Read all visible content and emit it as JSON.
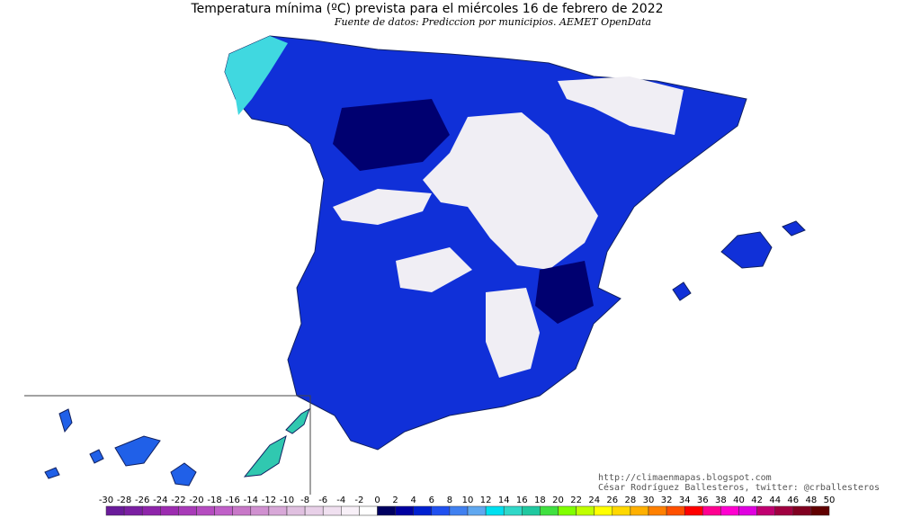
{
  "title": "Temperatura mínima (ºC) prevista para el miércoles 16 de febrero de 2022",
  "subtitle": "Fuente de datos: Prediccion por municipios. AEMET OpenData",
  "credits": [
    "http://climaenmapas.blogspot.com",
    "César Rodríguez Ballesteros, twitter: @crballesteros"
  ],
  "colorbar": {
    "ticks": [
      -30,
      -28,
      -26,
      -24,
      -22,
      -20,
      -18,
      -16,
      -14,
      -12,
      -10,
      -8,
      -6,
      -4,
      -2,
      0,
      2,
      4,
      6,
      8,
      10,
      12,
      14,
      16,
      18,
      20,
      22,
      24,
      26,
      28,
      30,
      32,
      34,
      36,
      38,
      40,
      42,
      44,
      46,
      48,
      50
    ],
    "colors": [
      "#6a1b9a",
      "#7b1fa2",
      "#8e24aa",
      "#9c2cb0",
      "#a83ab8",
      "#b54cc0",
      "#c060c8",
      "#c878c8",
      "#d090d0",
      "#d8a8d8",
      "#e0c0e0",
      "#e8d0e8",
      "#f0e0f0",
      "#f8f0f8",
      "#ffffff",
      "#000060",
      "#0000a0",
      "#0020d0",
      "#2050f0",
      "#4080f0",
      "#60a8f0",
      "#00e0f0",
      "#30d8c8",
      "#20c8a0",
      "#40e040",
      "#80ff00",
      "#c0ff00",
      "#ffff00",
      "#ffd800",
      "#ffb000",
      "#ff8000",
      "#ff5000",
      "#ff0000",
      "#ff0090",
      "#ff00d0",
      "#e000e0",
      "#c00070",
      "#a00040",
      "#800020",
      "#600000"
    ]
  }
}
